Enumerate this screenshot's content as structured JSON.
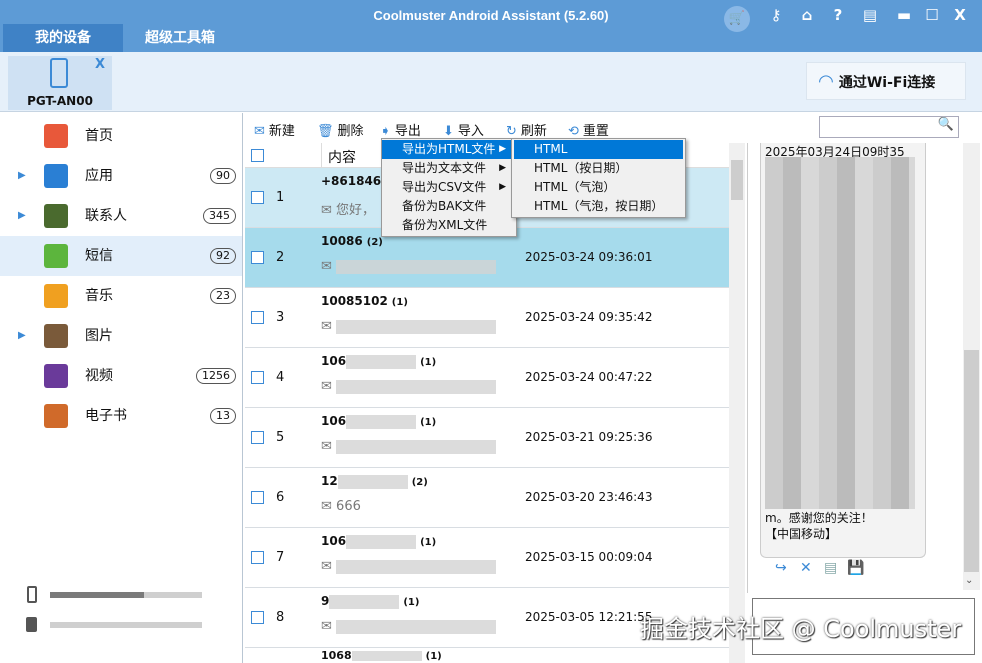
{
  "window": {
    "title": "Coolmuster Android Assistant (5.2.60)",
    "buttons": [
      "key",
      "home",
      "?",
      "notes",
      "min",
      "max",
      "X"
    ]
  },
  "tabs": [
    {
      "label": "我的设备",
      "active": true
    },
    {
      "label": "超级工具箱",
      "active": false
    }
  ],
  "device": {
    "name": "PGT-AN00",
    "close": "X"
  },
  "wifi_button": "通过Wi-Fi连接",
  "sidebar": {
    "items": [
      {
        "label": "首页",
        "count": null,
        "expand": false,
        "icon": "home-icon",
        "color": "#e8583a"
      },
      {
        "label": "应用",
        "count": "90",
        "expand": true,
        "icon": "apps-icon",
        "color": "#2a7fd4"
      },
      {
        "label": "联系人",
        "count": "345",
        "expand": true,
        "icon": "contacts-icon",
        "color": "#4a6a2e"
      },
      {
        "label": "短信",
        "count": "92",
        "expand": false,
        "icon": "sms-icon",
        "color": "#5cb53d",
        "active": true
      },
      {
        "label": "音乐",
        "count": "23",
        "expand": false,
        "icon": "music-icon",
        "color": "#f0a020"
      },
      {
        "label": "图片",
        "count": null,
        "expand": true,
        "icon": "photo-icon",
        "color": "#7a5a3a"
      },
      {
        "label": "视频",
        "count": "1256",
        "expand": false,
        "icon": "video-icon",
        "color": "#6a3a9a"
      },
      {
        "label": "电子书",
        "count": "13",
        "expand": false,
        "icon": "ebook-icon",
        "color": "#d06a2a"
      }
    ],
    "storage": [
      {
        "used": 0.62
      },
      {
        "used": 0.0
      }
    ]
  },
  "toolbar": {
    "new": "新建",
    "delete": "删除",
    "export": "导出",
    "import": "导入",
    "refresh": "刷新",
    "reset": "重置"
  },
  "list": {
    "header": {
      "content": "内容"
    },
    "rows": [
      {
        "num": "1",
        "name": "+8618466",
        "count": "",
        "preview": "您好，",
        "date": ""
      },
      {
        "num": "2",
        "name": "10086",
        "count": "(2)",
        "preview": "",
        "date": "2025-03-24 09:36:01"
      },
      {
        "num": "3",
        "name": "10085102",
        "count": "(1)",
        "preview": "",
        "date": "2025-03-24 09:35:42"
      },
      {
        "num": "4",
        "name": "106",
        "count": "(1)",
        "preview": "",
        "date": "2025-03-24 00:47:22"
      },
      {
        "num": "5",
        "name": "106",
        "count": "(1)",
        "preview": "",
        "date": "2025-03-21 09:25:36"
      },
      {
        "num": "6",
        "name": "12",
        "count": "(2)",
        "preview": "666",
        "date": "2025-03-20 23:46:43"
      },
      {
        "num": "7",
        "name": "106",
        "count": "(1)",
        "preview": "",
        "date": "2025-03-15 00:09:04"
      },
      {
        "num": "8",
        "name": "9",
        "count": "(1)",
        "preview": "",
        "date": "2025-03-05 12:21:55"
      },
      {
        "num": "",
        "name": "1068",
        "count": "(1)",
        "preview": "",
        "date": ""
      }
    ]
  },
  "export_menu": {
    "items": [
      "导出为HTML文件",
      "导出为文本文件",
      "导出为CSV文件",
      "备份为BAK文件",
      "备份为XML文件"
    ],
    "submenu": [
      "HTML",
      "HTML（按日期）",
      "HTML（气泡）",
      "HTML（气泡，按日期）"
    ]
  },
  "message": {
    "date": "2025年03月24日09时35",
    "tail1": "m。感谢您的关注！",
    "tail2": "【中国移动】"
  },
  "watermark": "掘金技术社区 @ Coolmuster"
}
